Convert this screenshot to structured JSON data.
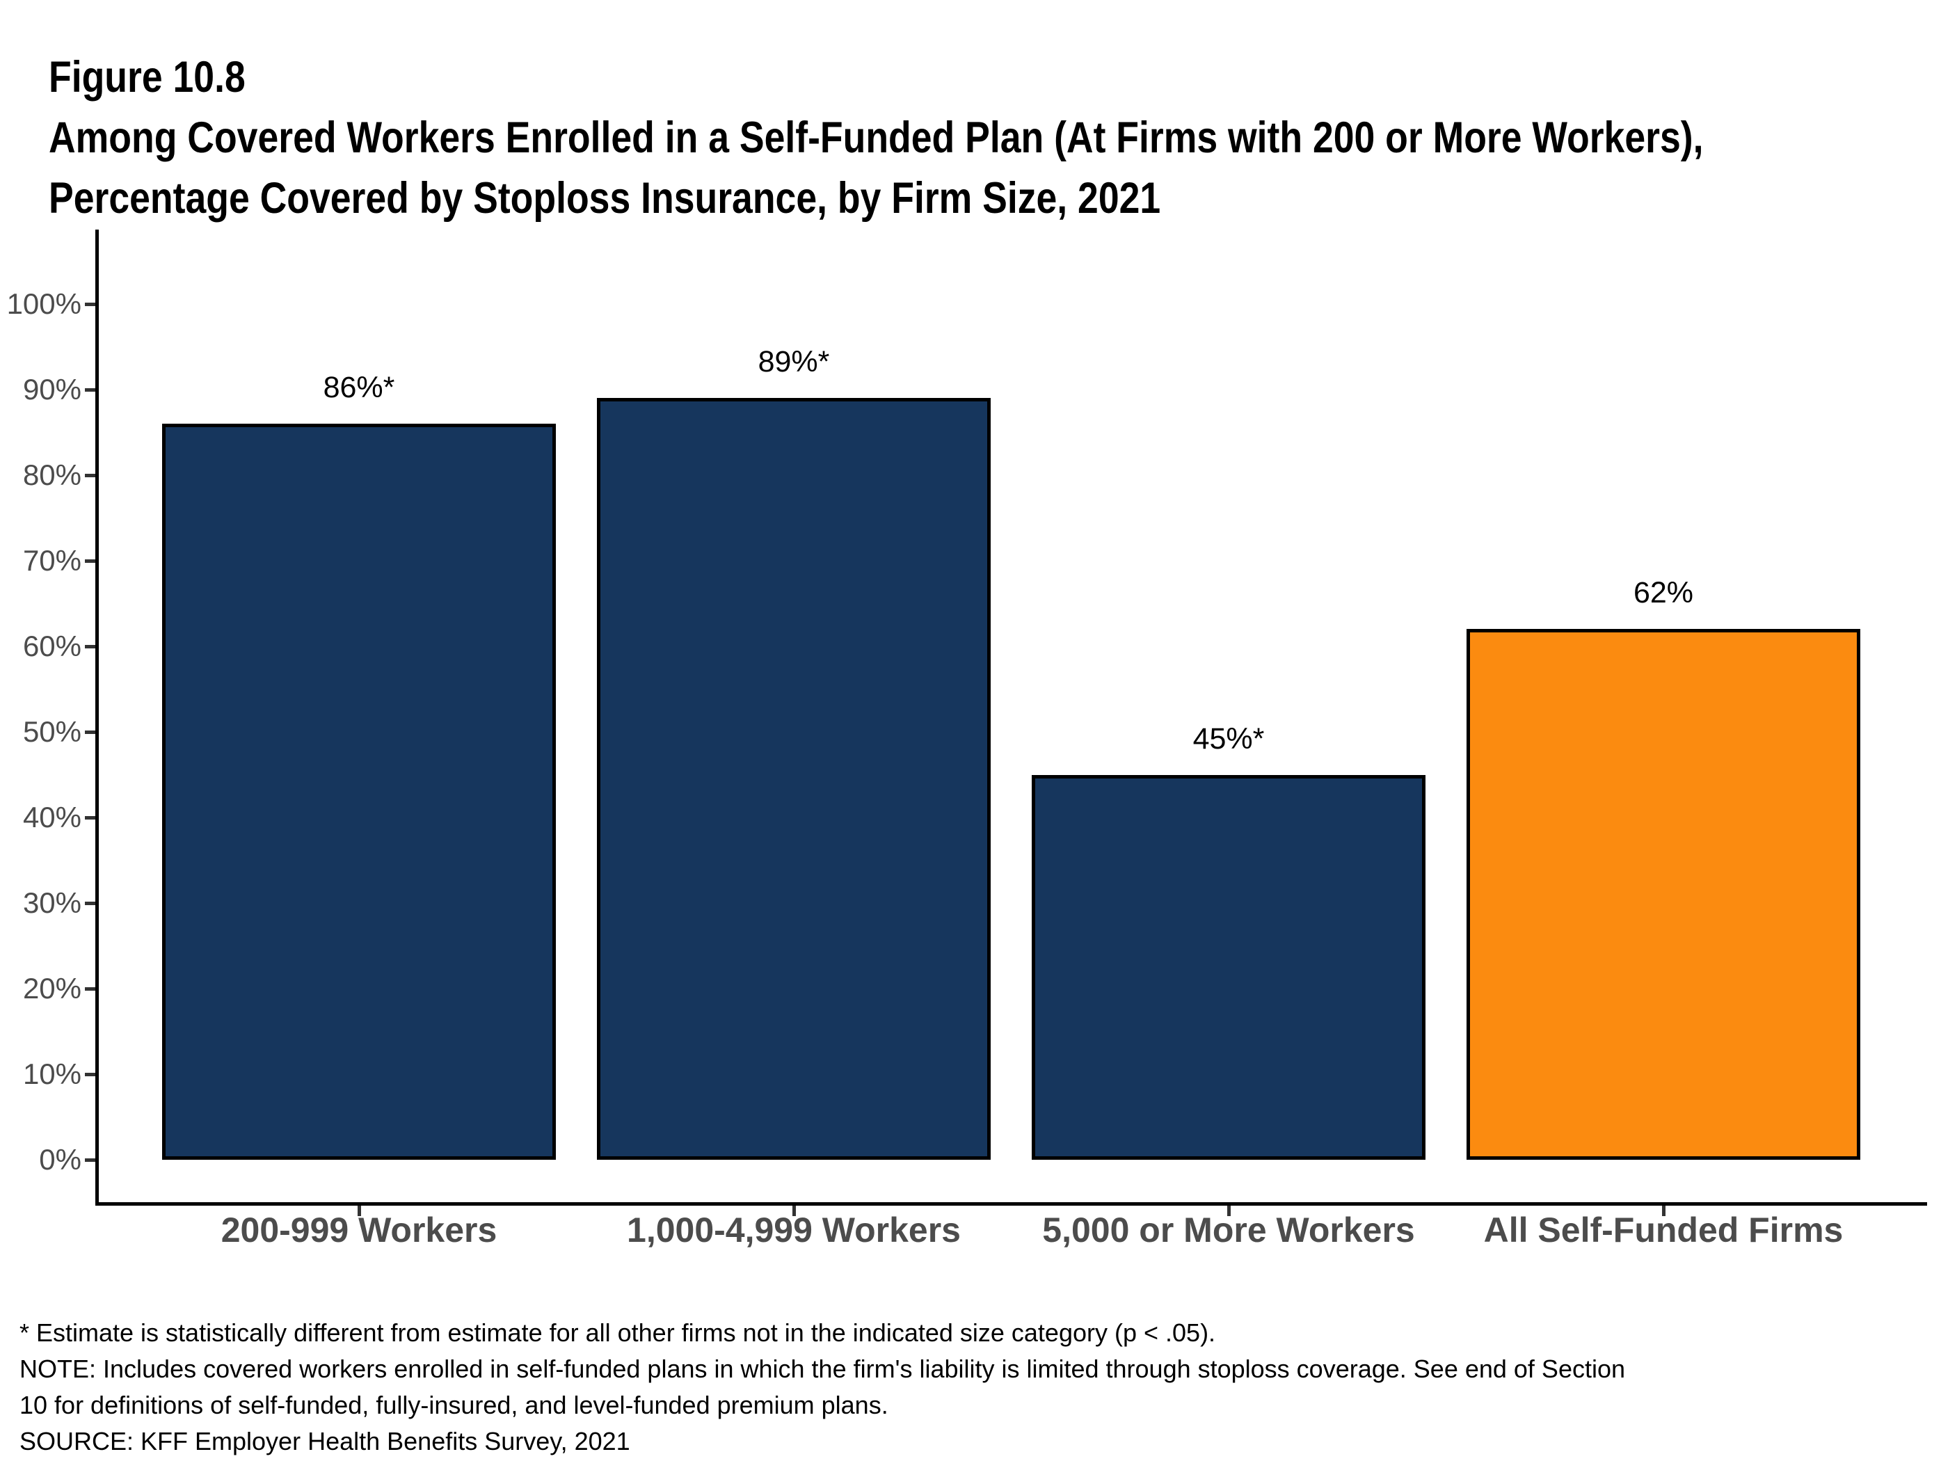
{
  "figure": {
    "label": "Figure 10.8",
    "title_line1": "Among Covered Workers Enrolled in a Self-Funded Plan (At Firms with 200 or More Workers),",
    "title_line2": "Percentage Covered by Stoploss Insurance, by Firm Size, 2021"
  },
  "chart_data": {
    "type": "bar",
    "title": "Among Covered Workers Enrolled in a Self-Funded Plan (At Firms with 200 or More Workers), Percentage Covered by Stoploss Insurance, by Firm Size, 2021",
    "categories": [
      "200-999 Workers",
      "1,000-4,999 Workers",
      "5,000 or More Workers",
      "All Self-Funded Firms"
    ],
    "values": [
      86,
      89,
      45,
      62
    ],
    "value_labels": [
      "86%*",
      "89%*",
      "45%*",
      "62%"
    ],
    "bar_colors": [
      "#16365D",
      "#16365D",
      "#16365D",
      "#FB8B10"
    ],
    "xlabel": "",
    "ylabel": "",
    "ylim": [
      0,
      100
    ],
    "ytick_step": 10,
    "ytick_labels": [
      "0%",
      "10%",
      "20%",
      "30%",
      "40%",
      "50%",
      "60%",
      "70%",
      "80%",
      "90%",
      "100%"
    ],
    "grid": false,
    "legend": false,
    "colors": {
      "navy": "#16365D",
      "orange": "#FB8B10",
      "axis": "#000000",
      "axis_text": "#4c4c4c"
    }
  },
  "footnotes": {
    "line1": "* Estimate is statistically different from estimate for all other firms not in the indicated size category (p < .05).",
    "line2": "NOTE: Includes covered workers enrolled in self-funded plans in which the firm's liability is limited through stoploss coverage. See end of Section",
    "line3": "10 for definitions of self-funded, fully-insured, and level-funded premium plans.",
    "line4": "SOURCE: KFF Employer Health Benefits Survey, 2021"
  }
}
